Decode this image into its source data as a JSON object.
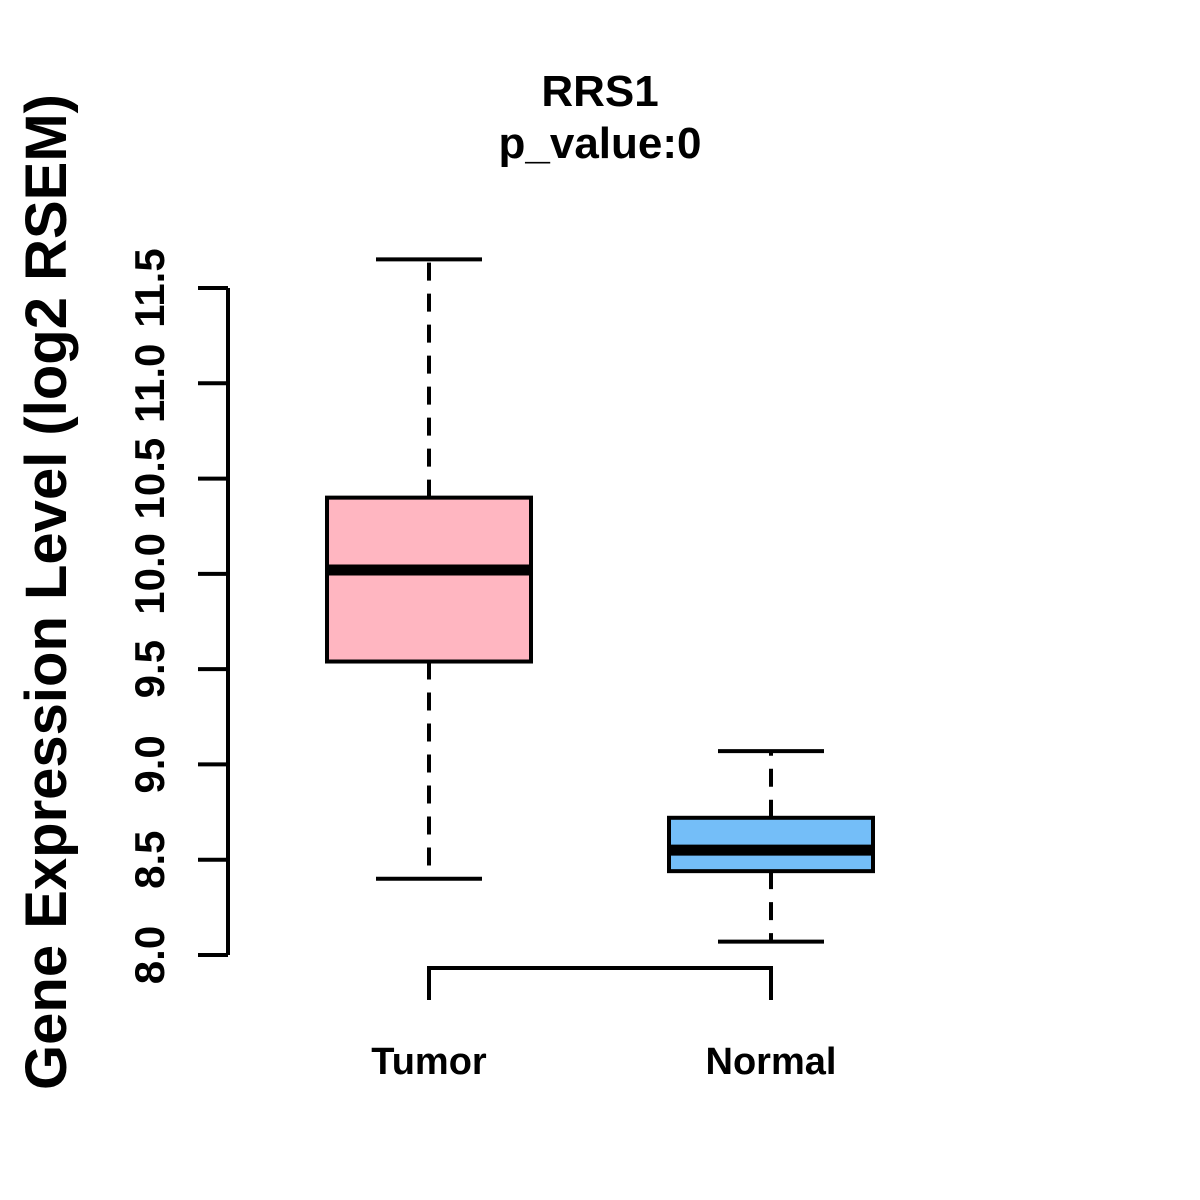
{
  "figure": {
    "background": "#FFFFFF",
    "line_color": "#000000"
  },
  "chart_data": {
    "type": "boxplot",
    "title": "RRS1",
    "subtitle": "p_value:0",
    "ylabel": "Gene Expression Level (log2 RSEM)",
    "xlabel": "",
    "categories": [
      "Tumor",
      "Normal"
    ],
    "series": [
      {
        "name": "Tumor",
        "color": "#FFB6C1",
        "lower_whisker": 8.4,
        "q1": 9.54,
        "median": 10.02,
        "q3": 10.4,
        "upper_whisker": 11.65
      },
      {
        "name": "Normal",
        "color": "#74BEF8",
        "lower_whisker": 8.07,
        "q1": 8.44,
        "median": 8.55,
        "q3": 8.72,
        "upper_whisker": 9.07
      }
    ],
    "yticks": [
      8.0,
      8.5,
      9.0,
      9.5,
      10.0,
      10.5,
      11.0,
      11.5
    ],
    "ylim": [
      8.0,
      11.5
    ],
    "grid": false,
    "legend": "none",
    "whisker_style": "dashed",
    "comparison_bracket": {
      "from": "Tumor",
      "to": "Normal"
    }
  }
}
